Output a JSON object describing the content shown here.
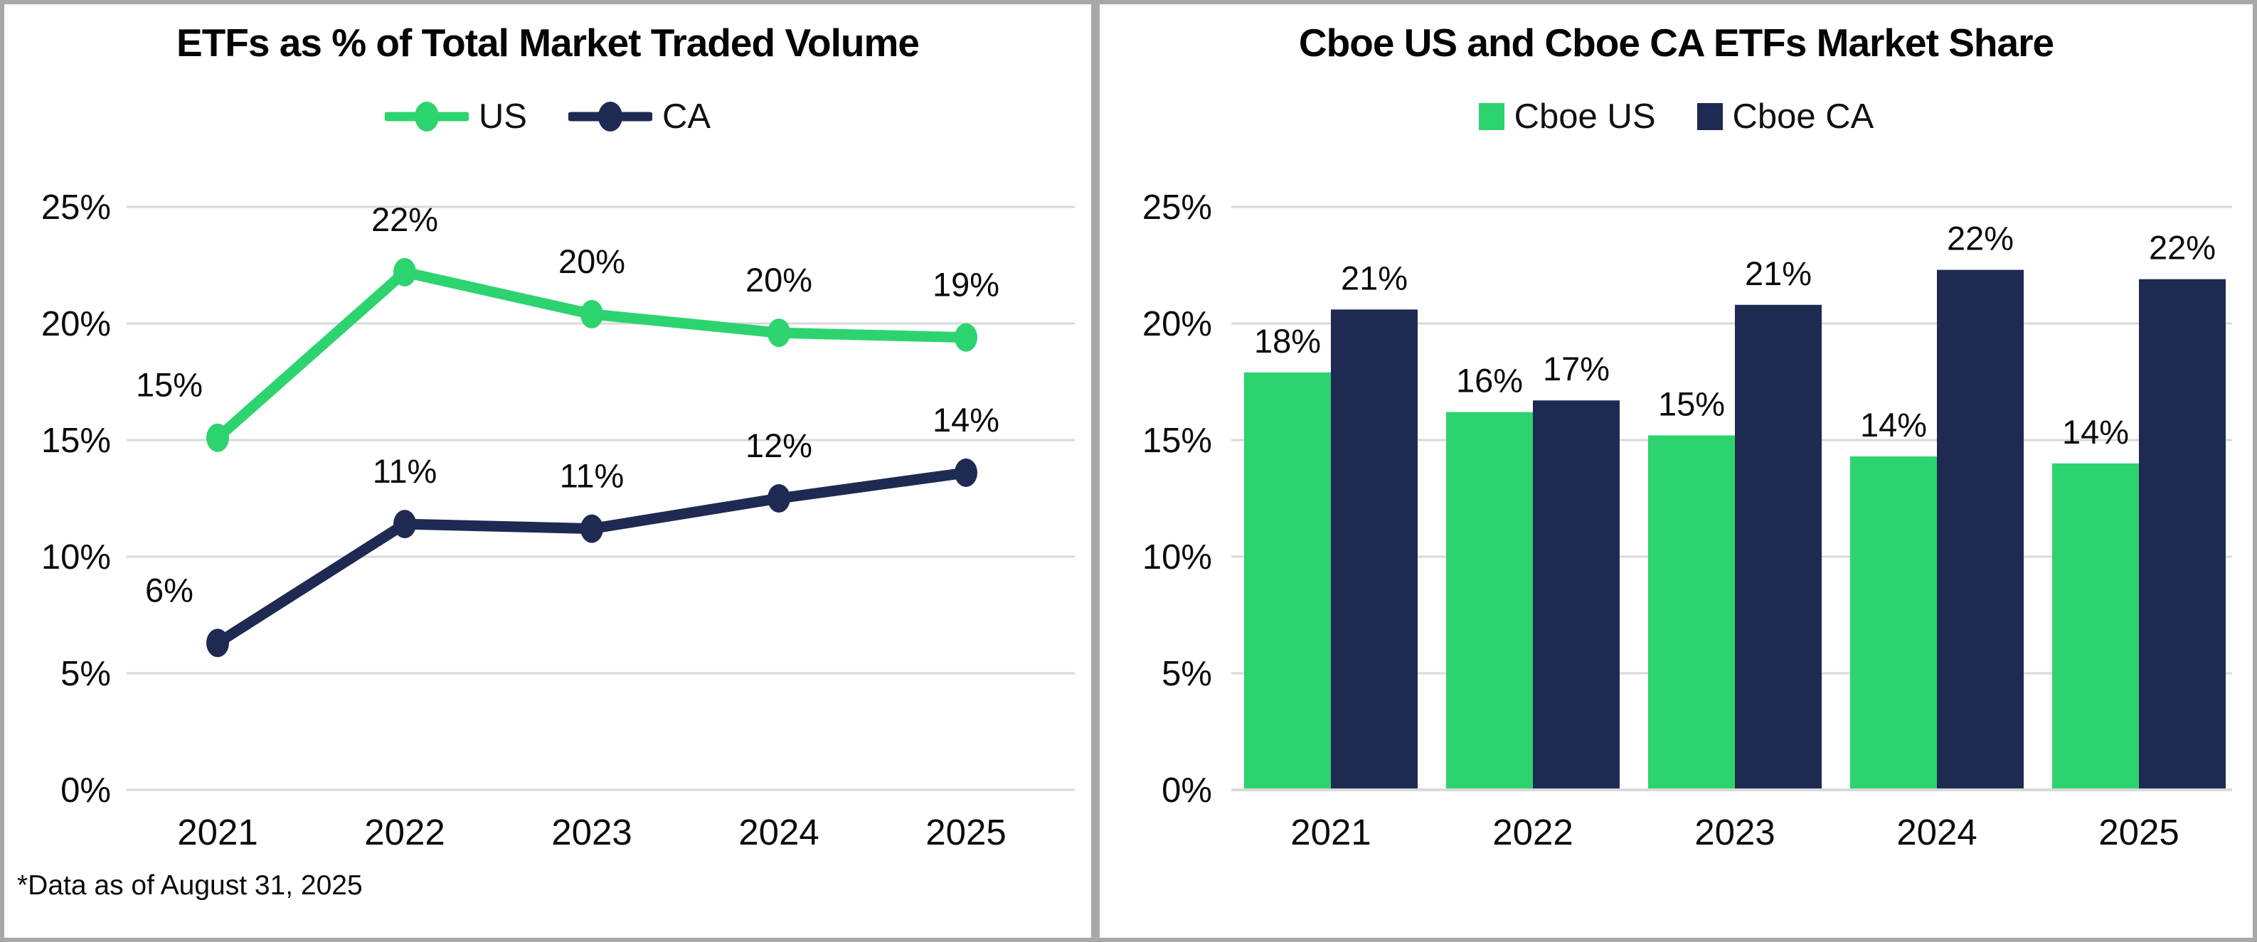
{
  "colors": {
    "us_green": "#2DD36F",
    "ca_navy": "#1E2A52",
    "gridline": "#D9D9D9",
    "panel_border": "#A8A8A8",
    "text": "#0B0B0B",
    "background": "#FFFFFF"
  },
  "left_panel": {
    "title": "ETFs as % of Total Market Traded Volume",
    "footnote": "*Data as of August 31, 2025"
  },
  "right_panel": {
    "title": "Cboe US and Cboe CA ETFs Market Share"
  },
  "chart_data": [
    {
      "type": "line",
      "title": "ETFs as % of Total Market Traded Volume",
      "categories": [
        "2021",
        "2022",
        "2023",
        "2024",
        "2025"
      ],
      "series": [
        {
          "name": "US",
          "color": "#2DD36F",
          "values": [
            15,
            22,
            20,
            20,
            19
          ],
          "labels": [
            "15%",
            "22%",
            "20%",
            "20%",
            "19%"
          ],
          "plot_values": [
            15.1,
            22.2,
            20.4,
            19.6,
            19.4
          ]
        },
        {
          "name": "CA",
          "color": "#1E2A52",
          "values": [
            6,
            11,
            11,
            12,
            14
          ],
          "labels": [
            "6%",
            "11%",
            "11%",
            "12%",
            "14%"
          ],
          "plot_values": [
            6.3,
            11.4,
            11.2,
            12.5,
            13.6
          ]
        }
      ],
      "xlabel": "",
      "ylabel": "",
      "ylim": [
        0,
        25
      ],
      "y_ticks": [
        "0%",
        "5%",
        "10%",
        "15%",
        "20%",
        "25%"
      ],
      "grid": true,
      "legend_position": "top",
      "footnote": "*Data as of August 31, 2025"
    },
    {
      "type": "bar",
      "title": "Cboe US and Cboe CA ETFs Market Share",
      "categories": [
        "2021",
        "2022",
        "2023",
        "2024",
        "2025"
      ],
      "series": [
        {
          "name": "Cboe US",
          "color": "#2DD36F",
          "values": [
            18,
            16,
            15,
            14,
            14
          ],
          "labels": [
            "18%",
            "16%",
            "15%",
            "14%",
            "14%"
          ],
          "plot_values": [
            17.9,
            16.2,
            15.2,
            14.3,
            14.0
          ]
        },
        {
          "name": "Cboe CA",
          "color": "#1E2A52",
          "values": [
            21,
            17,
            21,
            22,
            22
          ],
          "labels": [
            "21%",
            "17%",
            "21%",
            "22%",
            "22%"
          ],
          "plot_values": [
            20.6,
            16.7,
            20.8,
            22.3,
            21.9
          ]
        }
      ],
      "xlabel": "",
      "ylabel": "",
      "ylim": [
        0,
        25
      ],
      "y_ticks": [
        "0%",
        "5%",
        "10%",
        "15%",
        "20%",
        "25%"
      ],
      "grid": true,
      "legend_position": "top"
    }
  ]
}
